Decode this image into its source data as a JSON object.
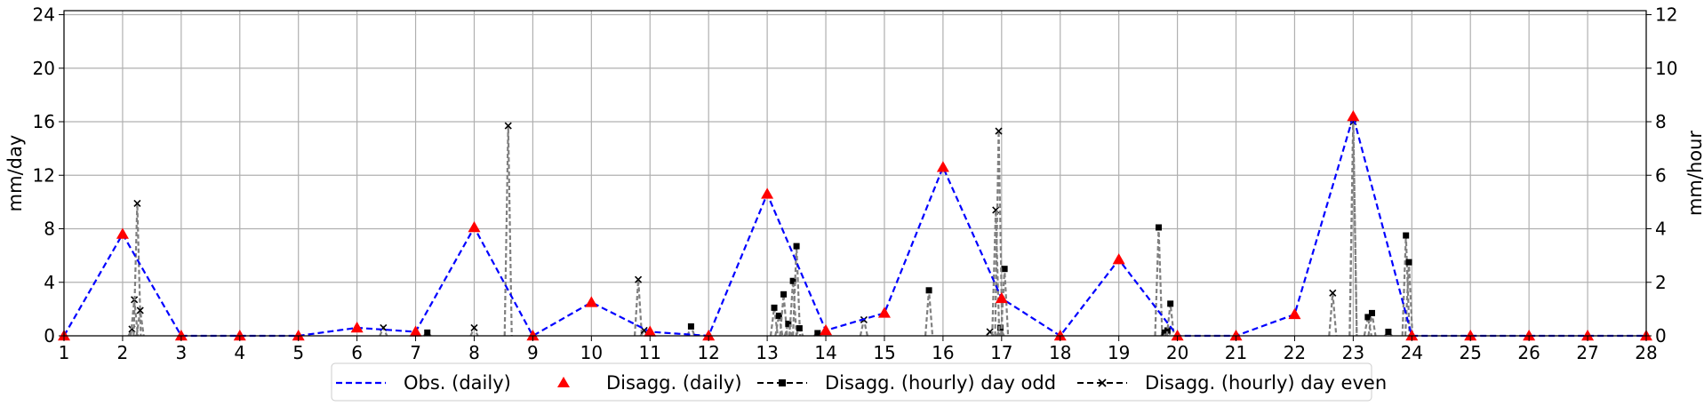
{
  "chart_data": {
    "type": "line",
    "title": "",
    "xlabel": "",
    "ylabel_left": "mm/day",
    "ylabel_right": "mm/hour",
    "xlim": [
      1,
      28
    ],
    "ylim_left": [
      0,
      24.3
    ],
    "ylim_right": [
      0,
      12.15
    ],
    "x_ticks": [
      1,
      2,
      3,
      4,
      5,
      6,
      7,
      8,
      9,
      10,
      11,
      12,
      13,
      14,
      15,
      16,
      17,
      18,
      19,
      20,
      21,
      22,
      23,
      24,
      25,
      26,
      27,
      28
    ],
    "y_ticks_left": [
      0,
      4,
      8,
      12,
      16,
      20,
      24
    ],
    "y_ticks_right": [
      0,
      2,
      4,
      6,
      8,
      10,
      12
    ],
    "grid": true,
    "legend_position": "bottom-center",
    "colors": {
      "observed": "#0000ff",
      "disagg_daily": "#ff0000",
      "hourly_odd": "#000000",
      "hourly_even": "#000000",
      "hourly_line": "#808080",
      "grid": "#b0b0b0"
    },
    "series": [
      {
        "name": "Obs. (daily)",
        "axis": "left",
        "x": [
          1,
          2,
          3,
          4,
          5,
          6,
          7,
          8,
          9,
          10,
          11,
          12,
          13,
          14,
          15,
          16,
          17,
          18,
          19,
          20,
          21,
          22,
          23,
          24,
          25,
          26,
          27,
          28
        ],
        "values": [
          0,
          7.6,
          0,
          0,
          0,
          0.6,
          0.3,
          8.1,
          0,
          2.5,
          0.3,
          0,
          10.6,
          0.4,
          1.7,
          12.6,
          2.8,
          0,
          5.7,
          0,
          0,
          1.6,
          16.4,
          0,
          0,
          0,
          0,
          0
        ]
      },
      {
        "name": "Disagg. (daily)",
        "axis": "left",
        "x": [
          1,
          2,
          3,
          4,
          5,
          6,
          7,
          8,
          9,
          10,
          11,
          12,
          13,
          14,
          15,
          16,
          17,
          18,
          19,
          20,
          21,
          22,
          23,
          24,
          25,
          26,
          27,
          28
        ],
        "values": [
          0,
          7.6,
          0,
          0,
          0,
          0.6,
          0.3,
          8.1,
          0,
          2.5,
          0.3,
          0,
          10.6,
          0.4,
          1.7,
          12.6,
          2.8,
          0,
          5.7,
          0,
          0,
          1.6,
          16.4,
          0,
          0,
          0,
          0,
          0
        ]
      },
      {
        "name": "Disagg. (hourly) day odd",
        "axis": "right",
        "x": [
          7.2,
          11.7,
          13.12,
          13.2,
          13.28,
          13.36,
          13.44,
          13.5,
          13.55,
          13.86,
          15.76,
          16.98,
          17.05,
          19.68,
          19.78,
          19.83,
          19.88,
          23.0,
          23.25,
          23.32,
          23.6,
          23.9,
          23.95
        ],
        "values": [
          0.12,
          0.35,
          1.05,
          0.75,
          1.55,
          0.45,
          2.05,
          3.35,
          0.28,
          0.1,
          1.7,
          0.3,
          2.5,
          4.05,
          0.12,
          0.2,
          1.2,
          8.1,
          0.7,
          0.85,
          0.15,
          3.75,
          2.75
        ]
      },
      {
        "name": "Disagg. (hourly) day even",
        "axis": "right",
        "x": [
          2.16,
          2.2,
          2.25,
          2.3,
          6.45,
          8.0,
          8.58,
          10.8,
          10.9,
          14.65,
          16.8,
          16.9,
          16.95,
          22.65,
          23.0
        ],
        "values": [
          0.25,
          1.35,
          4.95,
          0.95,
          0.3,
          0.3,
          7.85,
          2.1,
          0.2,
          0.6,
          0.15,
          4.7,
          7.65,
          1.6,
          8.0
        ]
      }
    ]
  }
}
